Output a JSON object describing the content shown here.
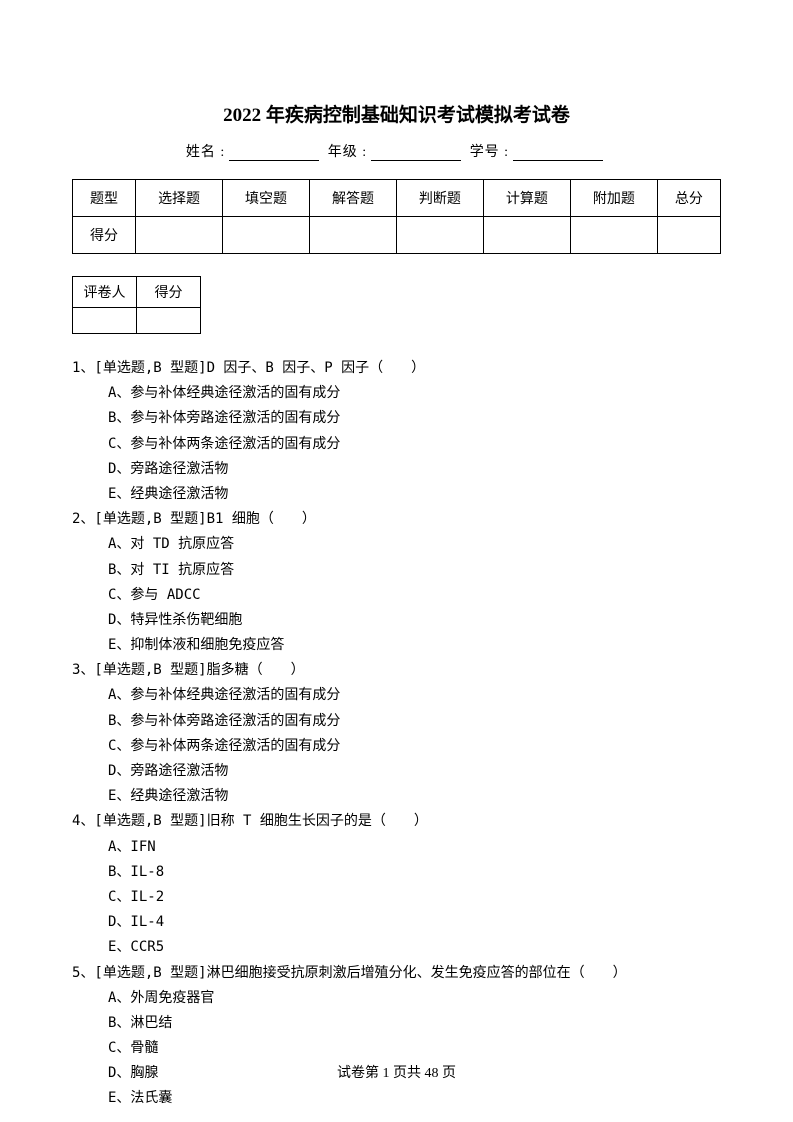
{
  "title": "2022 年疾病控制基础知识考试模拟考试卷",
  "info": {
    "name_label": "姓名 :",
    "grade_label": "年级 :",
    "id_label": "学号 :"
  },
  "score_table": {
    "headers": [
      "题型",
      "选择题",
      "填空题",
      "解答题",
      "判断题",
      "计算题",
      "附加题",
      "总分"
    ],
    "row_label": "得分"
  },
  "grader_table": {
    "cells": [
      "评卷人",
      "得分"
    ]
  },
  "questions": [
    {
      "stem": "1、[单选题,B 型题]D 因子、B 因子、P 因子（　　）",
      "options": [
        "A、参与补体经典途径激活的固有成分",
        "B、参与补体旁路途径激活的固有成分",
        "C、参与补体两条途径激活的固有成分",
        "D、旁路途径激活物",
        "E、经典途径激活物"
      ]
    },
    {
      "stem": "2、[单选题,B 型题]B1 细胞（　　）",
      "options": [
        "A、对 TD 抗原应答",
        "B、对 TI 抗原应答",
        "C、参与 ADCC",
        "D、特异性杀伤靶细胞",
        "E、抑制体液和细胞免疫应答"
      ]
    },
    {
      "stem": "3、[单选题,B 型题]脂多糖（　　）",
      "options": [
        "A、参与补体经典途径激活的固有成分",
        "B、参与补体旁路途径激活的固有成分",
        "C、参与补体两条途径激活的固有成分",
        "D、旁路途径激活物",
        "E、经典途径激活物"
      ]
    },
    {
      "stem": "4、[单选题,B 型题]旧称 T 细胞生长因子的是（　　）",
      "options": [
        "A、IFN",
        "B、IL-8",
        "C、IL-2",
        "D、IL-4",
        "E、CCR5"
      ]
    },
    {
      "stem": "5、[单选题,B 型题]淋巴细胞接受抗原刺激后增殖分化、发生免疫应答的部位在（　　）",
      "options": [
        "A、外周免疫器官",
        "B、淋巴结",
        "C、骨髓",
        "D、胸腺",
        "E、法氏囊"
      ]
    }
  ],
  "footer": "试卷第 1 页共 48 页"
}
